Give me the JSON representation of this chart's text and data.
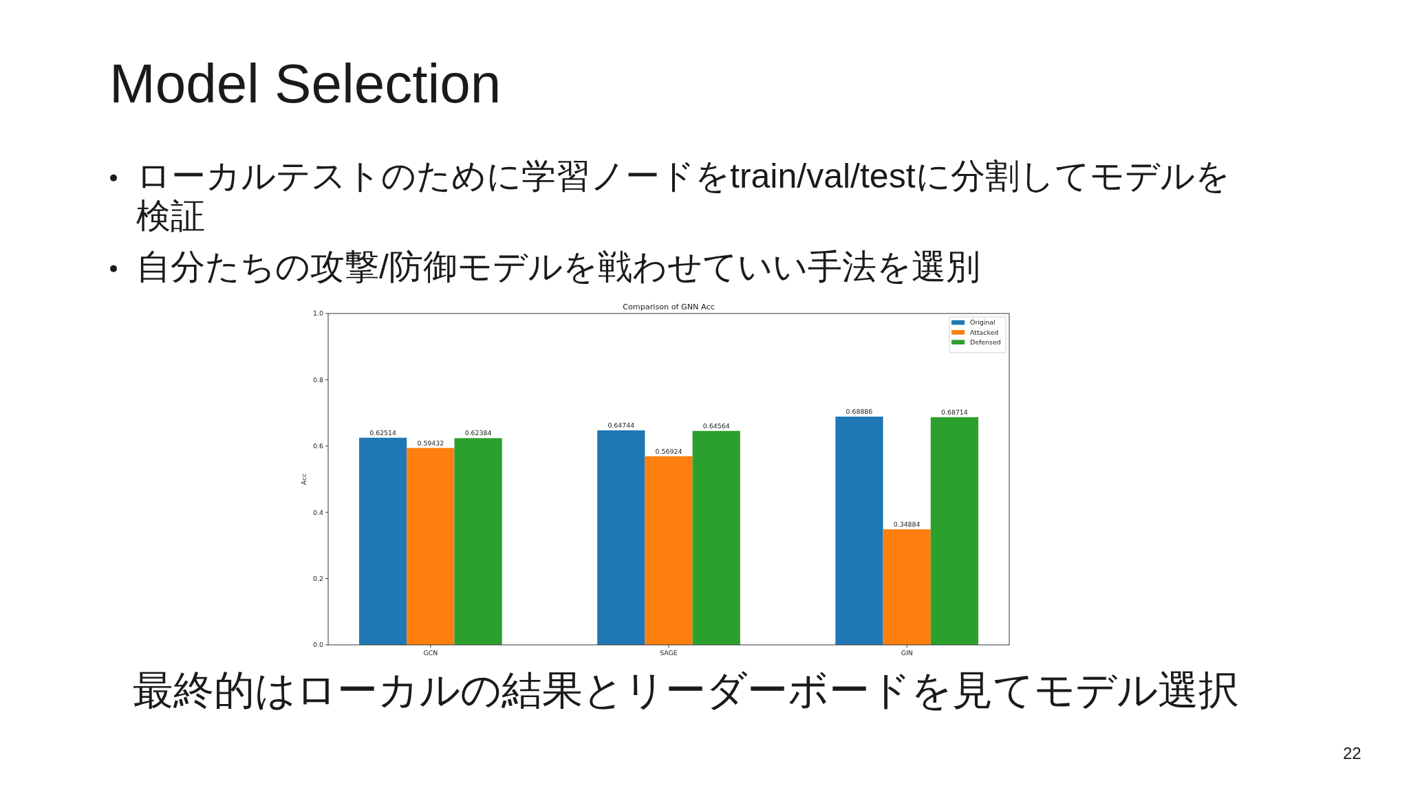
{
  "chart_data": {
    "type": "bar",
    "title": "Comparison of GNN Acc",
    "ylabel": "Acc",
    "categories": [
      "GCN",
      "SAGE",
      "GIN"
    ],
    "series": [
      {
        "name": "Original",
        "color": "#1f77b4",
        "values": [
          0.62514,
          0.64744,
          0.68886
        ]
      },
      {
        "name": "Attacked",
        "color": "#ff7f0e",
        "values": [
          0.59432,
          0.56924,
          0.34884
        ]
      },
      {
        "name": "Defensed",
        "color": "#2ca02c",
        "values": [
          0.62384,
          0.64564,
          0.68714
        ]
      }
    ],
    "ylim": [
      0,
      1.0
    ],
    "yticks": [
      {
        "value": 0,
        "label": "0.0"
      },
      0.2,
      0.4,
      0.6,
      0.8,
      {
        "value": 1,
        "label": "1.0"
      }
    ],
    "data_labels": true,
    "legend": "top right",
    "annotations": [
      "Model Selection",
      "ローカルテストのために学習ノードをtrain/val/testに分割してモデルを検証",
      "自分たちの攻撃/防御モデルを戦わせていい手法を選別",
      "最終的はローカルの結果とリーダーボードを見てモデル選択",
      "22"
    ]
  }
}
